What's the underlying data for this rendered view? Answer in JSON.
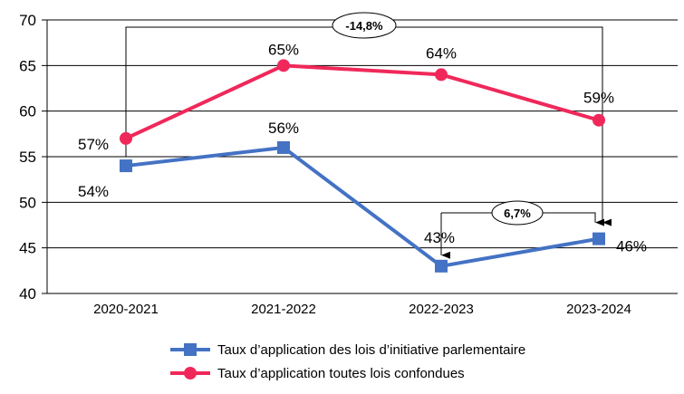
{
  "chart_data": {
    "type": "line",
    "title": "",
    "xlabel": "",
    "ylabel": "",
    "categories": [
      "2020-2021",
      "2021-2022",
      "2022-2023",
      "2023-2024"
    ],
    "ylim": [
      40,
      70
    ],
    "yticks": [
      40,
      45,
      50,
      55,
      60,
      65,
      70
    ],
    "grid": true,
    "series": [
      {
        "name": "Taux d’application des lois d’initiative parlementaire",
        "color": "#4472C4",
        "marker": "square",
        "values": [
          54,
          56,
          43,
          46
        ],
        "labels": [
          "54%",
          "56%",
          "43%",
          "46%"
        ]
      },
      {
        "name": "Taux d’application toutes lois confondues",
        "color": "#F0285A",
        "marker": "circle",
        "values": [
          57,
          65,
          64,
          59
        ],
        "labels": [
          "57%",
          "65%",
          "64%",
          "59%"
        ]
      }
    ],
    "annotations": [
      {
        "text": "-14,8%",
        "from": "2020-2021",
        "to": "2023-2024",
        "series": "Taux d’application des lois d’initiative parlementaire"
      },
      {
        "text": "6,7%",
        "from": "2022-2023",
        "to": "2023-2024",
        "series": "Taux d’application des lois d’initiative parlementaire"
      }
    ],
    "legend_position": "bottom"
  }
}
